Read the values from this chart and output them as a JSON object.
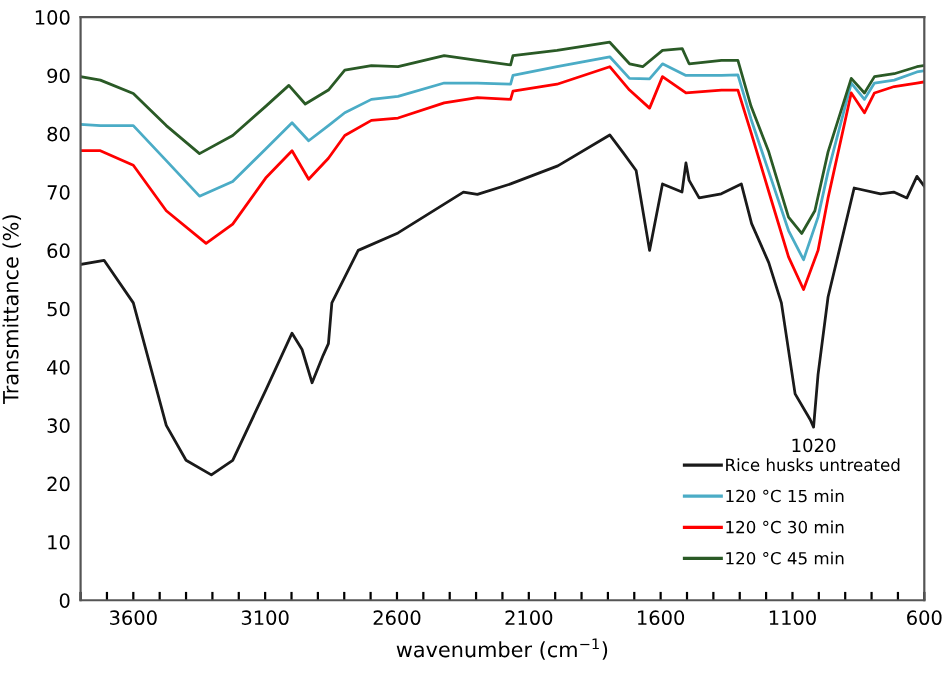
{
  "chart_data": {
    "type": "line",
    "xlabel": "wavenumber (cm$^{−1}$)",
    "ylabel": "Transmittance (%)",
    "xlim": [
      3800,
      600
    ],
    "ylim": [
      0,
      100
    ],
    "xticks": [
      {
        "value": 3800,
        "label": null
      },
      {
        "value": 3700,
        "label": null
      },
      3600,
      {
        "value": 3500,
        "label": null
      },
      {
        "value": 3400,
        "label": null
      },
      {
        "value": 3300,
        "label": null
      },
      {
        "value": 3200,
        "label": null
      },
      3100,
      {
        "value": 3000,
        "label": null
      },
      {
        "value": 2900,
        "label": null
      },
      {
        "value": 2800,
        "label": null
      },
      {
        "value": 2700,
        "label": null
      },
      2600,
      {
        "value": 2500,
        "label": null
      },
      {
        "value": 2400,
        "label": null
      },
      {
        "value": 2300,
        "label": null
      },
      {
        "value": 2200,
        "label": null
      },
      2100,
      {
        "value": 2000,
        "label": null
      },
      {
        "value": 1900,
        "label": null
      },
      {
        "value": 1800,
        "label": null
      },
      {
        "value": 1700,
        "label": null
      },
      1600,
      {
        "value": 1500,
        "label": null
      },
      {
        "value": 1400,
        "label": null
      },
      {
        "value": 1300,
        "label": null
      },
      {
        "value": 1200,
        "label": null
      },
      1100,
      {
        "value": 1000,
        "label": null
      },
      {
        "value": 900,
        "label": null
      },
      {
        "value": 800,
        "label": null
      },
      {
        "value": 700,
        "label": null
      },
      600
    ],
    "yticks": [
      0,
      10,
      20,
      30,
      40,
      50,
      60,
      70,
      80,
      90,
      100
    ],
    "grid": false,
    "legend": "bottom right",
    "marker": "none",
    "line_style": "solid",
    "annotations": [
      {
        "text": "1020",
        "x": 1020,
        "y": 29.7
      }
    ],
    "series": [
      {
        "name": "Rice husks untreated",
        "color": "#1a1a1a",
        "x": [
          3800,
          3711,
          3600,
          3475,
          3400,
          3304,
          3223,
          3098,
          2998,
          2960,
          2922,
          2880,
          2860,
          2847,
          2747,
          2596,
          2348,
          2295,
          2169,
          1990,
          1793,
          1743,
          1693,
          1642,
          1593,
          1519,
          1504,
          1492,
          1454,
          1370,
          1294,
          1255,
          1190,
          1142,
          1090,
          1033,
          1020,
          1003,
          965,
          866,
          766,
          716,
          666,
          628,
          600
        ],
        "values": [
          57.6,
          58.3,
          51,
          30,
          24,
          21.5,
          24,
          36,
          45.8,
          43,
          37.3,
          42,
          44,
          51,
          60,
          63,
          70,
          69.6,
          71.4,
          74.5,
          79.8,
          76.8,
          73.7,
          60,
          71.4,
          70,
          75,
          72,
          69,
          69.7,
          71.4,
          64.6,
          57.9,
          51,
          35.4,
          31,
          29.7,
          38.7,
          52,
          70.7,
          69.7,
          70,
          69,
          72.7,
          71
        ]
      },
      {
        "name": "120 °C 15 min",
        "color": "#4bacc6",
        "x": [
          3800,
          3725,
          3600,
          3475,
          3349,
          3223,
          3098,
          2998,
          2935,
          2860,
          2798,
          2697,
          2596,
          2421,
          2295,
          2169,
          2160,
          1993,
          1793,
          1718,
          1642,
          1593,
          1504,
          1369,
          1307,
          1257,
          1190,
          1115,
          1058,
          1003,
          965,
          877,
          827,
          789,
          714,
          628,
          600
        ],
        "values": [
          81.6,
          81.4,
          81.4,
          75.4,
          69.3,
          71.8,
          77.4,
          81.9,
          78.8,
          81.4,
          83.6,
          85.9,
          86.4,
          88.7,
          88.7,
          88.5,
          90,
          91.5,
          93.2,
          89.5,
          89.4,
          92,
          90,
          90,
          90.1,
          82.5,
          73.5,
          63.4,
          58.4,
          65.7,
          73.5,
          88.7,
          85.9,
          88.7,
          89.2,
          90.6,
          90.8
        ]
      },
      {
        "name": "120 °C 30 min",
        "color": "#ff0000",
        "x": [
          3800,
          3725,
          3600,
          3475,
          3324,
          3223,
          3098,
          2998,
          2935,
          2860,
          2798,
          2697,
          2596,
          2421,
          2295,
          2169,
          2160,
          1993,
          1793,
          1718,
          1642,
          1593,
          1504,
          1369,
          1307,
          1257,
          1190,
          1115,
          1058,
          1003,
          965,
          877,
          827,
          789,
          714,
          628,
          600
        ],
        "values": [
          77.1,
          77.1,
          74.6,
          66.8,
          61.2,
          64.5,
          72.4,
          77.1,
          72.2,
          75.8,
          79.7,
          82.3,
          82.7,
          85.3,
          86.2,
          85.9,
          87.3,
          88.5,
          91.5,
          87.5,
          84.4,
          89.8,
          87,
          87.5,
          87.5,
          80.2,
          70.1,
          58.9,
          53.3,
          60,
          69,
          87,
          83.6,
          87,
          88.1,
          88.7,
          88.9
        ]
      },
      {
        "name": "120 °C 45 min",
        "color": "#2a5a26",
        "x": [
          3800,
          3725,
          3600,
          3475,
          3349,
          3223,
          3098,
          3010,
          2948,
          2860,
          2798,
          2697,
          2596,
          2421,
          2295,
          2169,
          2160,
          1993,
          1793,
          1718,
          1668,
          1593,
          1518,
          1492,
          1369,
          1307,
          1257,
          1190,
          1115,
          1065,
          1015,
          965,
          877,
          827,
          789,
          714,
          628,
          600
        ],
        "values": [
          89.8,
          89.2,
          86.9,
          81.4,
          76.6,
          79.7,
          84.7,
          88.3,
          85.1,
          87.5,
          90.9,
          91.7,
          91.5,
          93.4,
          92.6,
          91.8,
          93.4,
          94.3,
          95.7,
          92,
          91.5,
          94.3,
          94.6,
          92,
          92.6,
          92.6,
          84.7,
          76.9,
          65.7,
          62.9,
          66.8,
          76.9,
          89.5,
          87,
          89.8,
          90.3,
          91.5,
          91.7
        ]
      }
    ]
  }
}
